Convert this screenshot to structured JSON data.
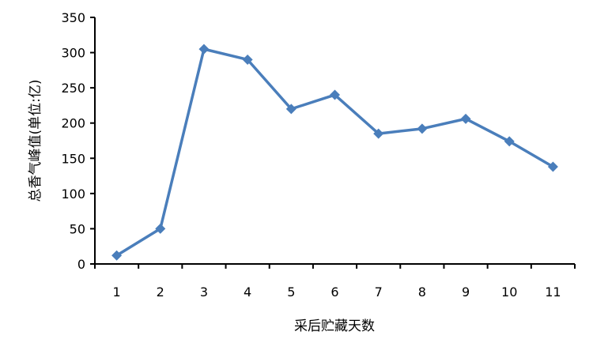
{
  "chart_data": {
    "type": "line",
    "title": "",
    "xlabel": "采后贮藏天数",
    "ylabel": "总香气峰值(单位:亿)",
    "categories": [
      "1",
      "2",
      "3",
      "4",
      "5",
      "6",
      "7",
      "8",
      "9",
      "10",
      "11"
    ],
    "series": [
      {
        "values": [
          12,
          50,
          305,
          290,
          220,
          240,
          185,
          192,
          206,
          174,
          138
        ],
        "color": "#4a7ebb",
        "marker": "diamond"
      }
    ],
    "ylim": [
      0,
      350
    ],
    "yticks": [
      "0",
      "50",
      "100",
      "150",
      "200",
      "250",
      "300",
      "350"
    ],
    "grid": false,
    "legend": "none"
  }
}
